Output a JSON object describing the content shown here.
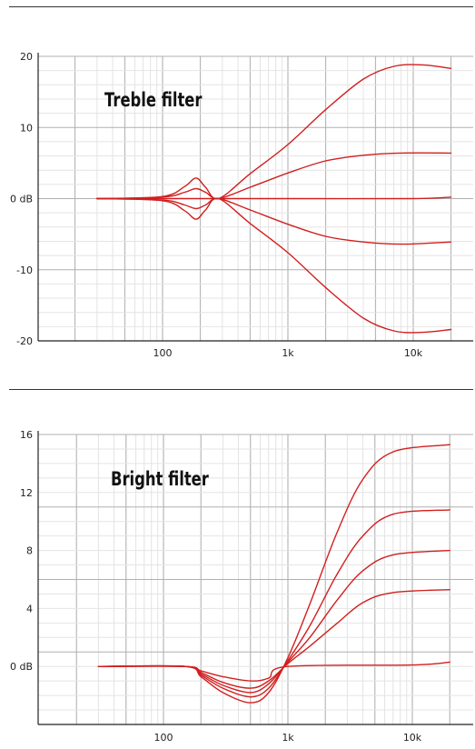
{
  "chart_data": [
    {
      "type": "line",
      "title": "Treble filter",
      "xscale": "log",
      "xlim": [
        20,
        22000
      ],
      "ylim": [
        -20,
        20
      ],
      "y_ticks": [
        20,
        10,
        0,
        -10,
        -20
      ],
      "y_tick_labels": [
        "20",
        "10",
        "0 dB",
        "-10",
        "-20"
      ],
      "x_ticks": [
        100,
        1000,
        10000
      ],
      "x_tick_labels": [
        "100",
        "1k",
        "10k"
      ],
      "grid": true,
      "color": "#d11f1f",
      "series": [
        {
          "values": [
            [
              30,
              0
            ],
            [
              100,
              0.3
            ],
            [
              150,
              1.7
            ],
            [
              185,
              2.9
            ],
            [
              220,
              1.6
            ],
            [
              280,
              0
            ],
            [
              500,
              3.5
            ],
            [
              1000,
              7.6
            ],
            [
              2000,
              12.5
            ],
            [
              4000,
              16.8
            ],
            [
              7000,
              18.6
            ],
            [
              12000,
              18.8
            ],
            [
              20000,
              18.3
            ]
          ]
        },
        {
          "values": [
            [
              30,
              0
            ],
            [
              100,
              0.2
            ],
            [
              150,
              0.9
            ],
            [
              185,
              1.4
            ],
            [
              220,
              0.9
            ],
            [
              280,
              0
            ],
            [
              500,
              1.6
            ],
            [
              1000,
              3.6
            ],
            [
              2000,
              5.3
            ],
            [
              4000,
              6.1
            ],
            [
              8000,
              6.4
            ],
            [
              20000,
              6.4
            ]
          ]
        },
        {
          "values": [
            [
              30,
              0
            ],
            [
              280,
              0
            ],
            [
              1000,
              0
            ],
            [
              10000,
              0
            ],
            [
              20000,
              0.2
            ]
          ]
        },
        {
          "values": [
            [
              30,
              0
            ],
            [
              100,
              -0.2
            ],
            [
              150,
              -0.9
            ],
            [
              185,
              -1.4
            ],
            [
              220,
              -0.9
            ],
            [
              280,
              0
            ],
            [
              500,
              -1.6
            ],
            [
              1000,
              -3.6
            ],
            [
              2000,
              -5.3
            ],
            [
              4000,
              -6.1
            ],
            [
              8000,
              -6.4
            ],
            [
              20000,
              -6.1
            ]
          ]
        },
        {
          "values": [
            [
              30,
              0
            ],
            [
              100,
              -0.3
            ],
            [
              150,
              -1.7
            ],
            [
              185,
              -2.9
            ],
            [
              220,
              -1.6
            ],
            [
              280,
              0
            ],
            [
              500,
              -3.5
            ],
            [
              1000,
              -7.6
            ],
            [
              2000,
              -12.5
            ],
            [
              4000,
              -16.8
            ],
            [
              7000,
              -18.6
            ],
            [
              12000,
              -18.8
            ],
            [
              20000,
              -18.4
            ]
          ]
        }
      ]
    },
    {
      "type": "line",
      "title": "Bright filter",
      "xscale": "log",
      "xlim": [
        20,
        22000
      ],
      "ylim": [
        -4,
        16
      ],
      "y_ticks": [
        16,
        12,
        8,
        4,
        0
      ],
      "y_tick_labels": [
        "16",
        "12",
        "8",
        "4",
        "0 dB"
      ],
      "x_ticks": [
        100,
        1000,
        10000
      ],
      "x_tick_labels": [
        "100",
        "1k",
        "10k"
      ],
      "grid": true,
      "color": "#d11f1f",
      "series": [
        {
          "values": [
            [
              30,
              0
            ],
            [
              150,
              0
            ],
            [
              200,
              -0.3
            ],
            [
              300,
              -0.7
            ],
            [
              500,
              -1.0
            ],
            [
              700,
              -0.8
            ],
            [
              1000,
              0
            ],
            [
              10000,
              0.1
            ],
            [
              20000,
              0.3
            ]
          ]
        },
        {
          "values": [
            [
              30,
              0
            ],
            [
              150,
              0
            ],
            [
              200,
              -0.4
            ],
            [
              300,
              -1.1
            ],
            [
              500,
              -1.5
            ],
            [
              700,
              -1.0
            ],
            [
              1000,
              0.2
            ],
            [
              1500,
              1.4
            ],
            [
              2500,
              3.0
            ],
            [
              4000,
              4.4
            ],
            [
              7000,
              5.1
            ],
            [
              20000,
              5.3
            ]
          ]
        },
        {
          "values": [
            [
              30,
              0
            ],
            [
              150,
              0
            ],
            [
              200,
              -0.5
            ],
            [
              300,
              -1.3
            ],
            [
              500,
              -1.8
            ],
            [
              700,
              -1.2
            ],
            [
              1000,
              0.3
            ],
            [
              1500,
              2.0
            ],
            [
              2500,
              4.6
            ],
            [
              4000,
              6.6
            ],
            [
              7000,
              7.7
            ],
            [
              20000,
              8.0
            ]
          ]
        },
        {
          "values": [
            [
              30,
              0
            ],
            [
              150,
              0
            ],
            [
              200,
              -0.6
            ],
            [
              300,
              -1.5
            ],
            [
              500,
              -2.1
            ],
            [
              700,
              -1.5
            ],
            [
              1000,
              0.4
            ],
            [
              1500,
              2.8
            ],
            [
              2500,
              6.4
            ],
            [
              4000,
              9.0
            ],
            [
              7000,
              10.5
            ],
            [
              20000,
              10.8
            ]
          ]
        },
        {
          "values": [
            [
              30,
              0
            ],
            [
              150,
              0
            ],
            [
              200,
              -0.7
            ],
            [
              300,
              -1.8
            ],
            [
              500,
              -2.5
            ],
            [
              700,
              -1.8
            ],
            [
              1000,
              0.6
            ],
            [
              1500,
              4.3
            ],
            [
              2500,
              9.3
            ],
            [
              4000,
              12.9
            ],
            [
              7000,
              14.8
            ],
            [
              20000,
              15.3
            ]
          ]
        }
      ]
    }
  ]
}
